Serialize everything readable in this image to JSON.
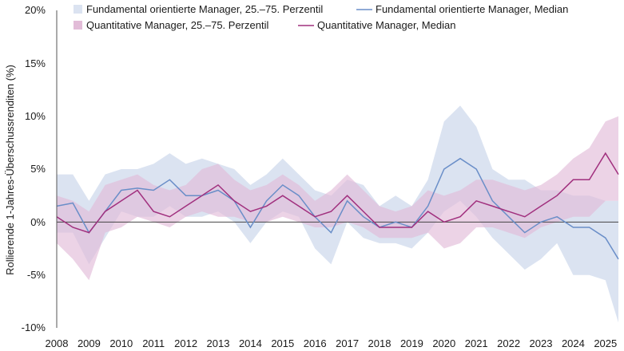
{
  "chart_data": {
    "type": "area",
    "ylabel": "Rollierende 1-Jahres-Überschussrenditen (%)",
    "xlabel": "",
    "xlim": [
      2008.0,
      2025.4
    ],
    "ylim": [
      -10,
      20
    ],
    "x_ticks": [
      "2008",
      "2009",
      "2010",
      "2011",
      "2012",
      "2013",
      "2014",
      "2015",
      "2016",
      "2017",
      "2018",
      "2019",
      "2020",
      "2021",
      "2022",
      "2023",
      "2024",
      "2025"
    ],
    "y_ticks": [
      "20%",
      "15%",
      "10%",
      "5%",
      "0%",
      "-5%",
      "-10%"
    ],
    "legend": [
      "Fundamental orientierte Manager, 25.–75. Perzentil",
      "Fundamental orientierte Manager, Median",
      "Quantitative Manager, 25.–75. Perzentil",
      "Quantitative Manager, Median"
    ],
    "colors": {
      "fund_band": "#dbe3f1",
      "fund_line": "#6a8ec8",
      "quant_band": "#e2bcd8",
      "quant_line": "#a1307e",
      "zero_line": "#444444"
    },
    "x": [
      2008.0,
      2008.5,
      2009.0,
      2009.5,
      2010.0,
      2010.5,
      2011.0,
      2011.5,
      2012.0,
      2012.5,
      2013.0,
      2013.5,
      2014.0,
      2014.5,
      2015.0,
      2015.5,
      2016.0,
      2016.5,
      2017.0,
      2017.5,
      2018.0,
      2018.5,
      2019.0,
      2019.5,
      2020.0,
      2020.5,
      2021.0,
      2021.5,
      2022.0,
      2022.5,
      2023.0,
      2023.5,
      2024.0,
      2024.5,
      2025.0,
      2025.4
    ],
    "series": [
      {
        "name": "Fundamental orientierte Manager, 25.–75. Perzentil",
        "low": [
          -1.0,
          -1.0,
          -4.0,
          -1.5,
          1.0,
          0.5,
          0.5,
          1.5,
          0.5,
          0.5,
          1.0,
          0.0,
          -2.0,
          0.0,
          1.0,
          0.5,
          -2.5,
          -4.0,
          0.0,
          -1.5,
          -2.0,
          -2.0,
          -2.5,
          -1.0,
          1.0,
          2.0,
          0.5,
          -1.5,
          -3.0,
          -4.5,
          -3.5,
          -2.0,
          -5.0,
          -5.0,
          -5.5,
          -9.5
        ],
        "high": [
          4.5,
          4.5,
          2.0,
          4.5,
          5.0,
          5.0,
          5.5,
          6.5,
          5.5,
          6.0,
          5.5,
          5.0,
          3.5,
          4.5,
          6.0,
          4.5,
          3.0,
          2.5,
          4.0,
          3.5,
          1.5,
          2.5,
          1.5,
          4.0,
          9.5,
          11.0,
          9.0,
          5.0,
          4.0,
          4.0,
          3.0,
          3.0,
          2.5,
          2.5,
          2.0,
          2.0
        ]
      },
      {
        "name": "Fundamental orientierte Manager, Median",
        "values": [
          1.5,
          1.8,
          -1.0,
          1.0,
          3.0,
          3.2,
          3.0,
          4.0,
          2.5,
          2.5,
          3.0,
          2.0,
          -0.5,
          2.0,
          3.5,
          2.5,
          0.5,
          -1.0,
          2.0,
          0.5,
          -0.5,
          0.0,
          -0.5,
          1.5,
          5.0,
          6.0,
          5.0,
          2.0,
          0.5,
          -1.0,
          0.0,
          0.5,
          -0.5,
          -0.5,
          -1.5,
          -3.5
        ]
      },
      {
        "name": "Quantitative Manager, 25.–75. Perzentil",
        "low": [
          -2.0,
          -3.5,
          -5.5,
          -1.0,
          -0.5,
          0.5,
          0.0,
          -0.5,
          0.5,
          1.0,
          0.5,
          0.5,
          0.0,
          0.0,
          0.5,
          0.0,
          -0.5,
          -0.5,
          0.0,
          -0.5,
          -1.5,
          -1.5,
          -1.5,
          -1.0,
          -2.5,
          -2.0,
          -0.5,
          -0.5,
          -1.0,
          -1.5,
          -0.5,
          0.0,
          0.5,
          0.5,
          2.0,
          2.0
        ],
        "high": [
          2.5,
          2.0,
          1.0,
          3.5,
          4.0,
          4.5,
          3.5,
          3.0,
          3.5,
          5.0,
          5.5,
          4.0,
          3.0,
          3.5,
          4.5,
          3.5,
          2.0,
          3.0,
          4.5,
          3.0,
          1.5,
          1.0,
          1.5,
          3.0,
          2.5,
          3.0,
          4.0,
          4.0,
          3.5,
          3.0,
          3.5,
          4.5,
          6.0,
          7.0,
          9.5,
          10.0
        ]
      },
      {
        "name": "Quantitative Manager, Median",
        "values": [
          0.5,
          -0.5,
          -1.0,
          1.0,
          2.0,
          3.0,
          1.0,
          0.5,
          1.5,
          2.5,
          3.5,
          2.0,
          1.0,
          1.5,
          2.5,
          1.5,
          0.5,
          1.0,
          2.5,
          1.0,
          -0.5,
          -0.5,
          -0.5,
          1.0,
          0.0,
          0.5,
          2.0,
          1.5,
          1.0,
          0.5,
          1.5,
          2.5,
          4.0,
          4.0,
          6.5,
          4.5
        ]
      }
    ]
  }
}
